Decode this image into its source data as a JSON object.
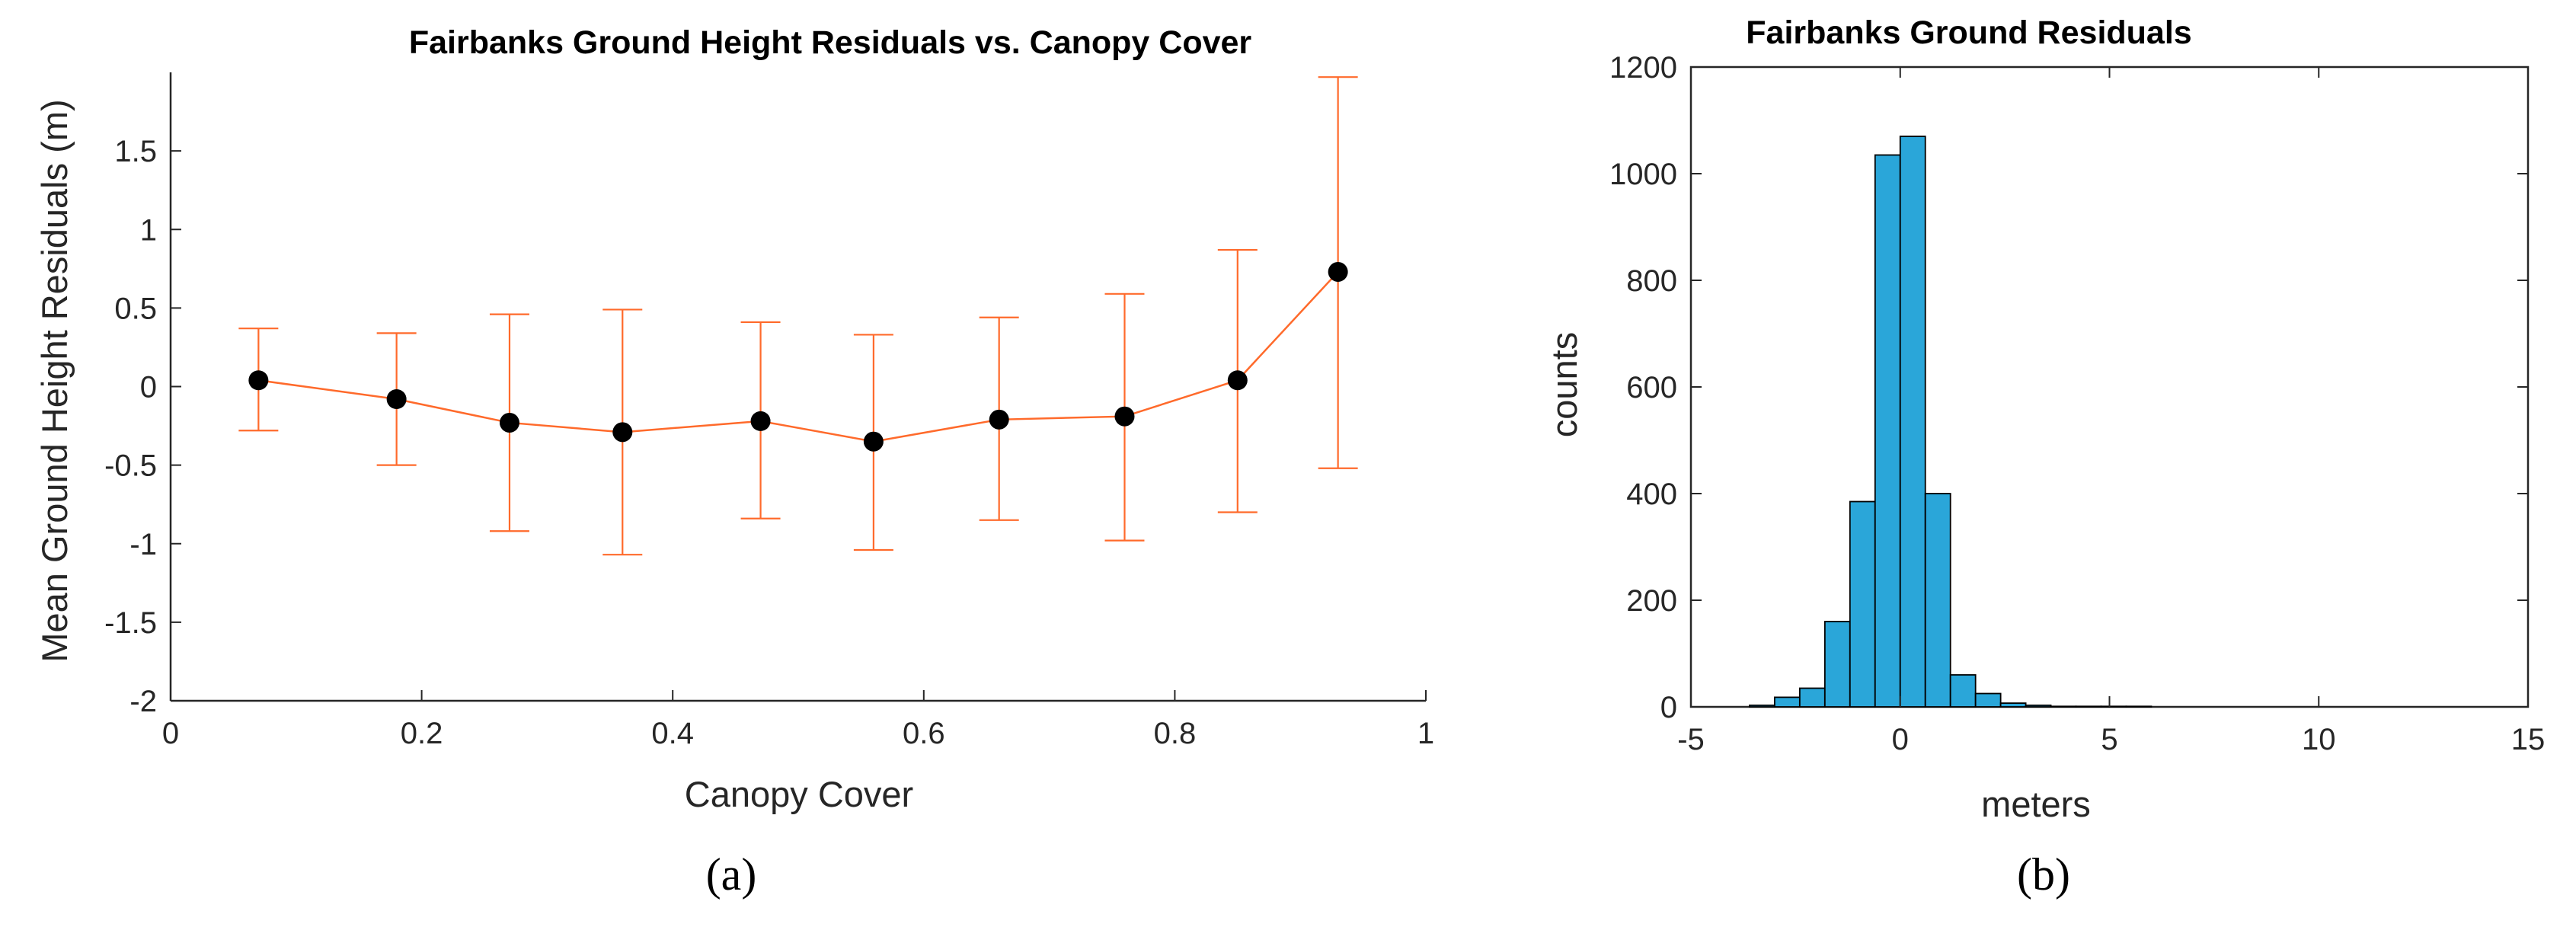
{
  "colors": {
    "axis": "#262626",
    "line": "#ff6a2b",
    "marker": "#000000",
    "bar_fill": "#2aa6d9",
    "bar_edge": "#000000"
  },
  "chart_data": [
    {
      "type": "line",
      "title": "Fairbanks  Ground Height Residuals vs. Canopy Cover",
      "xlabel": "Canopy Cover",
      "ylabel": "Mean Ground Height Residuals (m)",
      "sublabel": "(a)",
      "xlim": [
        0,
        1
      ],
      "ylim": [
        -2,
        2
      ],
      "xticks": [
        0,
        0.2,
        0.4,
        0.6,
        0.8,
        1
      ],
      "xtick_labels": [
        "0",
        "0.2",
        "0.4",
        "0.6",
        "0.8",
        "1"
      ],
      "yticks": [
        -2,
        -1.5,
        -1,
        -0.5,
        0,
        0.5,
        1,
        1.5
      ],
      "ytick_labels": [
        "-2",
        "-1.5",
        "-1",
        "-0.5",
        "0",
        "0.5",
        "1",
        "1.5"
      ],
      "grid": false,
      "marker": "filled-circle",
      "errorbars": true,
      "points": [
        {
          "x": 0.07,
          "y": 0.04,
          "lower": -0.28,
          "upper": 0.37
        },
        {
          "x": 0.18,
          "y": -0.08,
          "lower": -0.5,
          "upper": 0.34
        },
        {
          "x": 0.27,
          "y": -0.23,
          "lower": -0.92,
          "upper": 0.46
        },
        {
          "x": 0.36,
          "y": -0.29,
          "lower": -1.07,
          "upper": 0.49
        },
        {
          "x": 0.47,
          "y": -0.22,
          "lower": -0.84,
          "upper": 0.41
        },
        {
          "x": 0.56,
          "y": -0.35,
          "lower": -1.04,
          "upper": 0.33
        },
        {
          "x": 0.66,
          "y": -0.21,
          "lower": -0.85,
          "upper": 0.44
        },
        {
          "x": 0.76,
          "y": -0.19,
          "lower": -0.98,
          "upper": 0.59
        },
        {
          "x": 0.85,
          "y": 0.04,
          "lower": -0.8,
          "upper": 0.87
        },
        {
          "x": 0.93,
          "y": 0.73,
          "lower": -0.52,
          "upper": 1.97
        }
      ]
    },
    {
      "type": "bar",
      "title": "Fairbanks Ground Residuals",
      "xlabel": "meters",
      "ylabel": "counts",
      "sublabel": "(b)",
      "xlim": [
        -5,
        15
      ],
      "ylim": [
        0,
        1200
      ],
      "xticks": [
        -5,
        0,
        5,
        10,
        15
      ],
      "xtick_labels": [
        "-5",
        "0",
        "5",
        "10",
        "15"
      ],
      "yticks": [
        0,
        200,
        400,
        600,
        800,
        1000,
        1200
      ],
      "ytick_labels": [
        "0",
        "200",
        "400",
        "600",
        "800",
        "1000",
        "1200"
      ],
      "grid": false,
      "bin_width": 0.6,
      "bin_edges": [
        -3.6,
        -3.0,
        -2.4,
        -1.8,
        -1.2,
        -0.6,
        0.0,
        0.6,
        1.2,
        1.8,
        2.4,
        3.0,
        3.6,
        4.2,
        4.8,
        5.4,
        6.0
      ],
      "counts": [
        3,
        18,
        35,
        160,
        385,
        1035,
        1070,
        400,
        60,
        25,
        7,
        3,
        1,
        1,
        1,
        1
      ]
    }
  ]
}
